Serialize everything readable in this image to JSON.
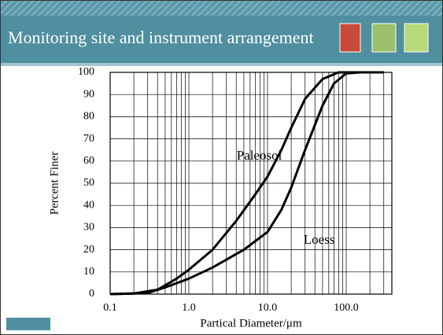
{
  "header": {
    "title": "Monitoring site and instrument arrangement"
  },
  "chart_data": {
    "type": "line",
    "xlabel": "Partical Diameter/μm",
    "ylabel": "Percent Finer",
    "xscale": "log",
    "grid": true,
    "xlim": [
      0.1,
      380
    ],
    "ylim": [
      0,
      100
    ],
    "xticks": [
      0.1,
      {
        "value": 1,
        "label": "1.0"
      },
      {
        "value": 10,
        "label": "10.0"
      },
      {
        "value": 100,
        "label": "100.0"
      }
    ],
    "yticks": [
      0,
      10,
      20,
      30,
      40,
      50,
      60,
      70,
      80,
      90,
      100
    ],
    "series": [
      {
        "name": "Paleosol",
        "color": "#000000",
        "x": [
          0.1,
          0.2,
          0.4,
          0.7,
          1,
          2,
          4,
          7,
          10,
          15,
          20,
          30,
          50,
          80,
          300
        ],
        "values": [
          0,
          0.3,
          2,
          7,
          11,
          20,
          33,
          45,
          53,
          65,
          75,
          88,
          97,
          100,
          100
        ]
      },
      {
        "name": "Loess",
        "color": "#000000",
        "x": [
          0.1,
          0.3,
          0.5,
          1,
          2,
          5,
          10,
          15,
          20,
          30,
          50,
          70,
          100,
          150,
          300
        ],
        "values": [
          0,
          0.5,
          3,
          7,
          12,
          20,
          28,
          38,
          48,
          65,
          85,
          95,
          99.5,
          100,
          100
        ]
      }
    ]
  }
}
